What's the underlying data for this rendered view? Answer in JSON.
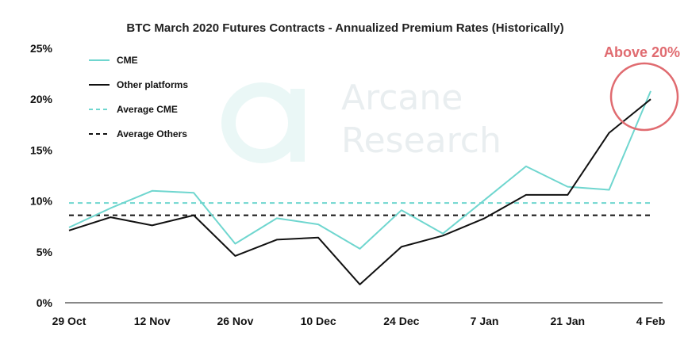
{
  "chart_data": {
    "type": "line",
    "title": "BTC March 2020 Futures Contracts - Annualized Premium Rates (Historically)",
    "x": [
      "29 Oct",
      "",
      "12 Nov",
      "",
      "26 Nov",
      "",
      "10 Dec",
      "",
      "24 Dec",
      "",
      "7 Jan",
      "",
      "21 Jan",
      "",
      "4 Feb"
    ],
    "x_tick_labels": [
      "29 Oct",
      "12 Nov",
      "26 Nov",
      "10 Dec",
      "24 Dec",
      "7 Jan",
      "21 Jan",
      "4 Feb"
    ],
    "y_tick_labels": [
      "0%",
      "5%",
      "10%",
      "15%",
      "20%",
      "25%"
    ],
    "ylim": [
      0,
      25
    ],
    "series": [
      {
        "name": "CME",
        "color": "#6fd6cf",
        "values": [
          7.4,
          9.3,
          11.0,
          10.8,
          5.8,
          8.3,
          7.7,
          5.3,
          9.1,
          6.8,
          10.1,
          13.4,
          11.4,
          11.1,
          20.8
        ]
      },
      {
        "name": "Other platforms",
        "color": "#111111",
        "values": [
          7.1,
          8.4,
          7.6,
          8.6,
          4.6,
          6.2,
          6.4,
          1.8,
          5.5,
          6.6,
          8.3,
          10.6,
          10.6,
          16.7,
          20.0
        ]
      }
    ],
    "reference_lines": [
      {
        "name": "Average CME",
        "value": 9.8,
        "color": "#6fd6cf"
      },
      {
        "name": "Average Others",
        "value": 8.6,
        "color": "#111111"
      }
    ],
    "legend": {
      "placement": "top-left",
      "items": [
        "CME",
        "Other platforms",
        "Average CME",
        "Average Others"
      ]
    },
    "annotation": {
      "text": "Above 20%",
      "color": "#e06b70"
    },
    "watermark": {
      "line1": "Arcane",
      "line2": "Research"
    }
  }
}
